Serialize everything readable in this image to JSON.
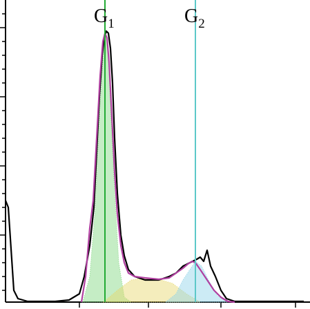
{
  "chart_data": {
    "type": "line",
    "xlim": [
      0,
      449
    ],
    "ylim": [
      0,
      447
    ],
    "xticks": [
      115,
      215,
      320,
      428
    ],
    "yticks": [
      27,
      47,
      67,
      87,
      107,
      127,
      147,
      167,
      187,
      207,
      227,
      247,
      267,
      287,
      307,
      327,
      347,
      367,
      387,
      407,
      427
    ],
    "series": [
      {
        "style": "area",
        "color": "#7fd67f",
        "x": [
          120,
          130,
          138,
          145,
          150,
          153,
          156,
          160,
          165,
          172,
          180,
          190
        ],
        "values": [
          10,
          47,
          147,
          297,
          377,
          392,
          387,
          297,
          187,
          67,
          17,
          10
        ]
      },
      {
        "style": "area",
        "color": "#e6d86a",
        "x": [
          150,
          170,
          190,
          210,
          230,
          250,
          270,
          290
        ],
        "values": [
          10,
          27,
          42,
          45,
          43,
          37,
          22,
          10
        ]
      },
      {
        "style": "area",
        "color": "#8fd3e8",
        "x": [
          240,
          255,
          265,
          275,
          283,
          292,
          302,
          315,
          330
        ],
        "values": [
          10,
          22,
          42,
          57,
          69,
          62,
          42,
          19,
          10
        ]
      },
      {
        "style": "line",
        "color": "#000000",
        "x": [
          8,
          12,
          16,
          20,
          26,
          40,
          80,
          100,
          115,
          122,
          130,
          136,
          140,
          144,
          148,
          151,
          154,
          157,
          160,
          163,
          166,
          170,
          175,
          180,
          186,
          195,
          210,
          230,
          245,
          255,
          265,
          275,
          285,
          290,
          295,
          300,
          305,
          312,
          320,
          328,
          340,
          380,
          420,
          440
        ],
        "values": [
          157,
          147,
          87,
          27,
          15,
          11,
          11,
          13,
          22,
          47,
          92,
          147,
          227,
          307,
          367,
          392,
          402,
          399,
          377,
          327,
          247,
          167,
          107,
          77,
          57,
          47,
          42,
          42,
          47,
          52,
          62,
          67,
          72,
          75,
          69,
          85,
          62,
          47,
          27,
          15,
          11,
          11,
          11,
          11
        ]
      },
      {
        "style": "line",
        "color": "#b03fa0",
        "x": [
          118,
          124,
          130,
          135,
          140,
          145,
          149,
          152,
          155,
          158,
          162,
          166,
          170,
          175,
          180,
          186,
          195,
          210,
          230,
          245,
          255,
          265,
          272,
          278,
          283,
          290,
          300,
          310,
          320,
          330,
          340
        ],
        "values": [
          10,
          47,
          117,
          157,
          247,
          337,
          387,
          399,
          392,
          357,
          277,
          197,
          137,
          92,
          67,
          52,
          47,
          45,
          43,
          45,
          52,
          59,
          65,
          69,
          67,
          57,
          42,
          27,
          17,
          11,
          10
        ]
      }
    ],
    "annotations": [
      {
        "text": "G",
        "sub": "1",
        "x": 152,
        "color": "#22aa33"
      },
      {
        "text": "G",
        "sub": "2",
        "x": 283,
        "color": "#5cc8c8"
      }
    ]
  }
}
